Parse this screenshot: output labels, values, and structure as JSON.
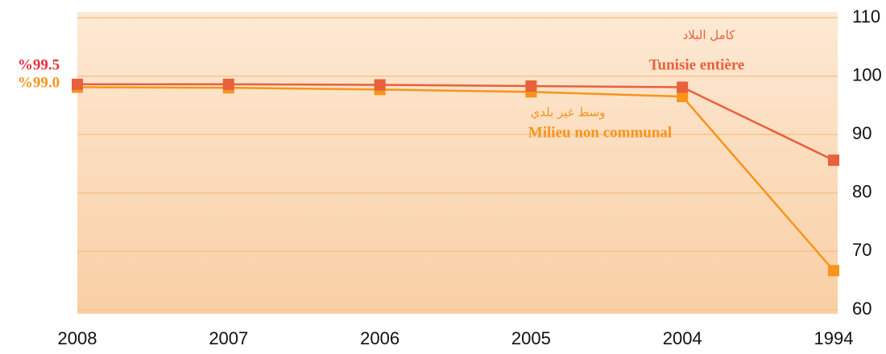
{
  "chart_data": {
    "type": "line",
    "categories": [
      "2008",
      "2007",
      "2006",
      "2005",
      "2004",
      "1994"
    ],
    "series": [
      {
        "name": "Tunisie entière",
        "label_ar": "كامل البلاد",
        "color": "#e8603c",
        "values": [
          98.6,
          98.6,
          98.5,
          98.3,
          98.1,
          85.6
        ]
      },
      {
        "name": "Milieu non communal",
        "label_ar": "وسط غير بلدي",
        "color": "#f7941d",
        "values": [
          98.1,
          98.0,
          97.7,
          97.3,
          96.5,
          66.7
        ]
      }
    ],
    "annotations": [
      {
        "text": "%99.5",
        "color": "#e8303c"
      },
      {
        "text": "%99.0",
        "color": "#f7941d"
      }
    ],
    "ylim": [
      60,
      110
    ],
    "yticks": [
      60,
      70,
      80,
      90,
      100,
      110
    ],
    "grid": true,
    "y_axis_side": "right"
  }
}
